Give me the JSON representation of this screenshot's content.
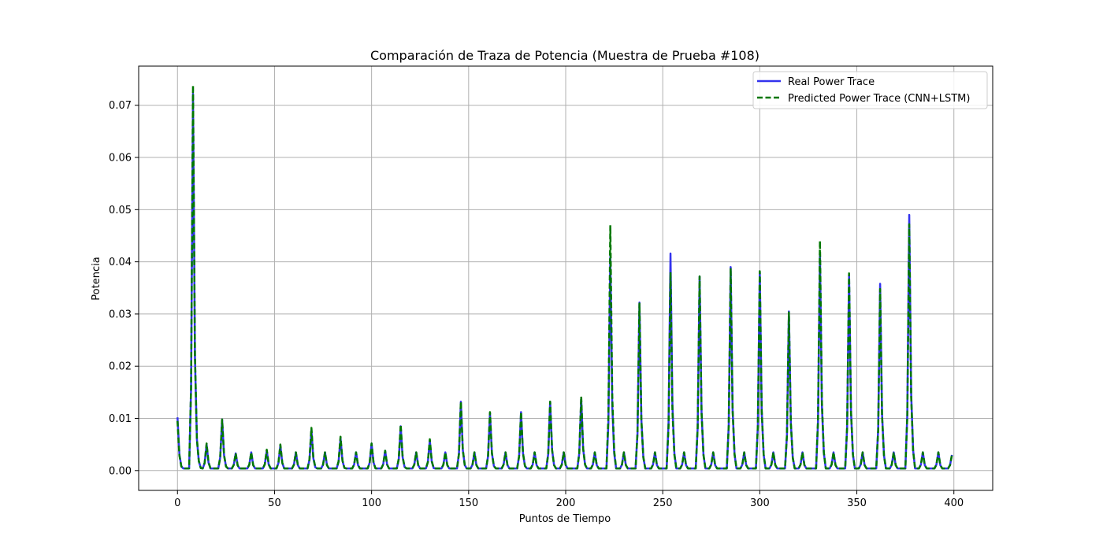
{
  "chart_data": {
    "type": "line",
    "title": "Comparación de Traza de Potencia (Muestra de Prueba #108)",
    "xlabel": "Puntos de Tiempo",
    "ylabel": "Potencia",
    "xlim": [
      -20,
      420
    ],
    "ylim": [
      -0.0038,
      0.0775
    ],
    "xticks": [
      0,
      50,
      100,
      150,
      200,
      250,
      300,
      350,
      400
    ],
    "yticks": [
      0.0,
      0.01,
      0.02,
      0.03,
      0.04,
      0.05,
      0.06,
      0.07
    ],
    "xtick_labels": [
      "0",
      "50",
      "100",
      "150",
      "200",
      "250",
      "300",
      "350",
      "400"
    ],
    "ytick_labels": [
      "0.00",
      "0.01",
      "0.02",
      "0.03",
      "0.04",
      "0.05",
      "0.06",
      "0.07"
    ],
    "grid": true,
    "legend_position": "top-right",
    "baseline": 0.0004,
    "x_range": [
      0,
      399
    ],
    "series": [
      {
        "name": "Real Power Trace",
        "color": "#3333ee",
        "style": "solid",
        "peaks": [
          [
            0,
            0.0102
          ],
          [
            8,
            0.0722
          ],
          [
            10,
            0.006
          ],
          [
            15,
            0.005
          ],
          [
            23,
            0.0098
          ],
          [
            30,
            0.0033
          ],
          [
            38,
            0.0035
          ],
          [
            46,
            0.0038
          ],
          [
            53,
            0.0048
          ],
          [
            61,
            0.0035
          ],
          [
            69,
            0.0078
          ],
          [
            76,
            0.0035
          ],
          [
            84,
            0.0062
          ],
          [
            92,
            0.0035
          ],
          [
            100,
            0.0052
          ],
          [
            107,
            0.0038
          ],
          [
            115,
            0.0085
          ],
          [
            123,
            0.0035
          ],
          [
            130,
            0.0058
          ],
          [
            138,
            0.0035
          ],
          [
            146,
            0.0132
          ],
          [
            153,
            0.0035
          ],
          [
            161,
            0.011
          ],
          [
            169,
            0.0035
          ],
          [
            177,
            0.0112
          ],
          [
            184,
            0.0035
          ],
          [
            192,
            0.0132
          ],
          [
            199,
            0.0035
          ],
          [
            208,
            0.0138
          ],
          [
            215,
            0.0035
          ],
          [
            223,
            0.041
          ],
          [
            230,
            0.0035
          ],
          [
            238,
            0.0322
          ],
          [
            246,
            0.0035
          ],
          [
            254,
            0.0416
          ],
          [
            261,
            0.0035
          ],
          [
            269,
            0.0372
          ],
          [
            276,
            0.0035
          ],
          [
            285,
            0.039
          ],
          [
            292,
            0.0035
          ],
          [
            300,
            0.038
          ],
          [
            307,
            0.0035
          ],
          [
            315,
            0.0305
          ],
          [
            322,
            0.0035
          ],
          [
            331,
            0.0418
          ],
          [
            338,
            0.0035
          ],
          [
            346,
            0.0375
          ],
          [
            353,
            0.0035
          ],
          [
            362,
            0.0358
          ],
          [
            369,
            0.0035
          ],
          [
            377,
            0.049
          ],
          [
            384,
            0.0035
          ],
          [
            392,
            0.0035
          ],
          [
            399,
            0.003
          ]
        ]
      },
      {
        "name": "Predicted Power Trace (CNN+LSTM)",
        "color": "#007700",
        "style": "dashed",
        "peaks": [
          [
            0,
            0.0095
          ],
          [
            8,
            0.0738
          ],
          [
            10,
            0.006
          ],
          [
            15,
            0.0052
          ],
          [
            23,
            0.0098
          ],
          [
            30,
            0.0033
          ],
          [
            38,
            0.0035
          ],
          [
            46,
            0.004
          ],
          [
            53,
            0.005
          ],
          [
            61,
            0.0035
          ],
          [
            69,
            0.0082
          ],
          [
            76,
            0.0035
          ],
          [
            84,
            0.0065
          ],
          [
            92,
            0.0035
          ],
          [
            100,
            0.0052
          ],
          [
            107,
            0.0038
          ],
          [
            115,
            0.0088
          ],
          [
            123,
            0.0035
          ],
          [
            130,
            0.006
          ],
          [
            138,
            0.0035
          ],
          [
            146,
            0.0132
          ],
          [
            153,
            0.0035
          ],
          [
            161,
            0.0112
          ],
          [
            169,
            0.0035
          ],
          [
            177,
            0.0112
          ],
          [
            184,
            0.0035
          ],
          [
            192,
            0.0132
          ],
          [
            199,
            0.0035
          ],
          [
            208,
            0.0142
          ],
          [
            215,
            0.0035
          ],
          [
            223,
            0.047
          ],
          [
            230,
            0.0035
          ],
          [
            238,
            0.032
          ],
          [
            246,
            0.0035
          ],
          [
            254,
            0.038
          ],
          [
            261,
            0.0035
          ],
          [
            269,
            0.0372
          ],
          [
            276,
            0.0035
          ],
          [
            285,
            0.0388
          ],
          [
            292,
            0.0035
          ],
          [
            300,
            0.0382
          ],
          [
            307,
            0.0035
          ],
          [
            315,
            0.0303
          ],
          [
            322,
            0.0035
          ],
          [
            331,
            0.044
          ],
          [
            338,
            0.0035
          ],
          [
            346,
            0.0378
          ],
          [
            353,
            0.0035
          ],
          [
            362,
            0.0348
          ],
          [
            369,
            0.0035
          ],
          [
            377,
            0.0472
          ],
          [
            384,
            0.0035
          ],
          [
            392,
            0.0035
          ],
          [
            399,
            0.003
          ]
        ]
      }
    ]
  }
}
